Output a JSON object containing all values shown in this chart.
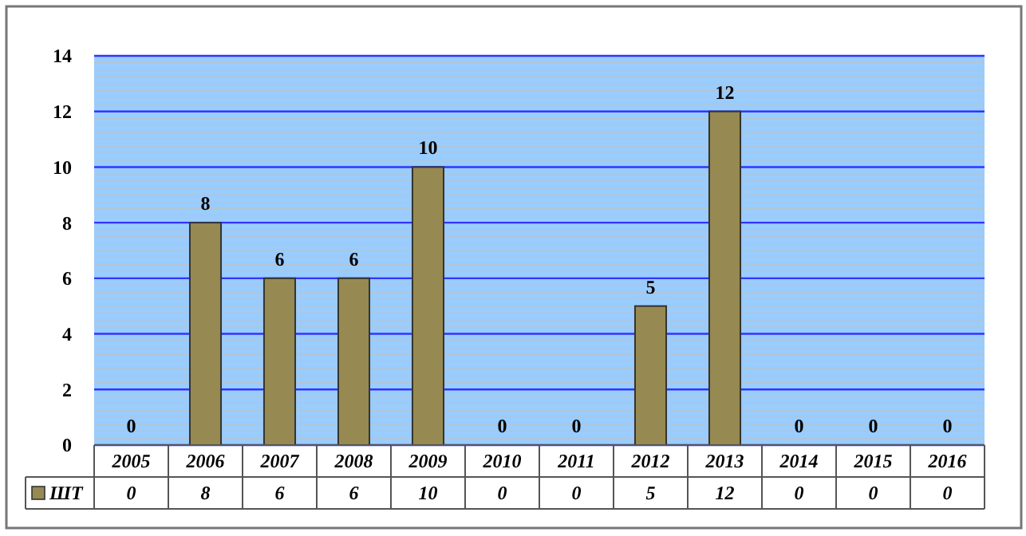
{
  "chart_data": {
    "type": "bar",
    "categories": [
      "2005",
      "2006",
      "2007",
      "2008",
      "2009",
      "2010",
      "2011",
      "2012",
      "2013",
      "2014",
      "2015",
      "2016"
    ],
    "series": [
      {
        "name": "ШТ",
        "color": "#968a52",
        "values": [
          0,
          8,
          6,
          6,
          10,
          0,
          0,
          5,
          12,
          0,
          0,
          0
        ],
        "value_labels": [
          "0",
          "8",
          "6",
          "6",
          "10",
          "0",
          "0",
          "5",
          "12",
          "0",
          "0",
          "0"
        ]
      }
    ],
    "ylim": [
      0,
      14
    ],
    "yticks": [
      0,
      2,
      4,
      6,
      8,
      10,
      12,
      14
    ],
    "grid": "y",
    "legend": "bottom",
    "annotations": [
      "0",
      "8",
      "6",
      "6",
      "10",
      "0",
      "0",
      "5",
      "12",
      "0",
      "0",
      "0"
    ]
  }
}
